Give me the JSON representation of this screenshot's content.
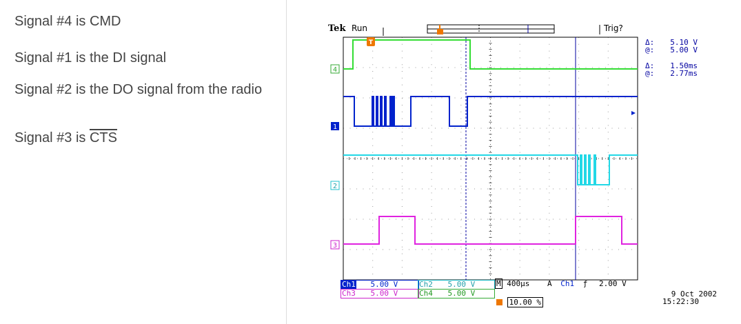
{
  "description": {
    "line1": "Signal #4 is CMD",
    "line2": "Signal #1 is the DI signal",
    "line3": "Signal #2 is the DO signal from the radio",
    "line4_prefix": "Signal #3 is ",
    "line4_overlined": "CTS"
  },
  "scope": {
    "brand": "Tek",
    "run_status": "Run",
    "trig_status": "Trig?",
    "trigger_marker_glyph": "T",
    "channel_markers": [
      "4",
      "1",
      "2",
      "3"
    ],
    "cursor_readout": {
      "voltage_delta_label": "Δ:",
      "voltage_delta": "5.10 V",
      "voltage_at_label": "@:",
      "voltage_at": "5.00 V",
      "time_delta_label": "Δ:",
      "time_delta": "1.50ms",
      "time_at_label": "@:",
      "time_at": "2.77ms"
    },
    "status_bar": {
      "ch1_label": "Ch1",
      "ch1_scale": "5.00 V",
      "ch2_label": "Ch2",
      "ch2_scale": "5.00 V",
      "ch3_label": "Ch3",
      "ch3_scale": "5.00 V",
      "ch4_label": "Ch4",
      "ch4_scale": "5.00 V",
      "timebase_label": "M",
      "timebase": "400µs",
      "trigger_mode": "A",
      "trigger_source": "Ch1",
      "trigger_slope": "ƒ",
      "trigger_level": "2.00 V",
      "trigger_position": "10.00 %"
    },
    "date": "9 Oct  2002",
    "time": "15:22:30",
    "colors": {
      "ch1": "#0022cc",
      "ch2": "#22d8e6",
      "ch3": "#e022e0",
      "ch4": "#33dd33",
      "trigger": "#ee7700",
      "cursor": "#0000a0"
    }
  }
}
